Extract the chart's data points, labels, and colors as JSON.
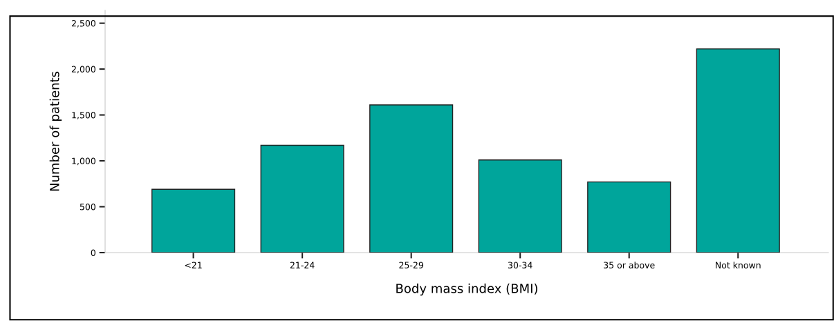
{
  "chart_data": {
    "type": "bar",
    "xlabel": "Body mass index (BMI)",
    "ylabel": "Number of patients",
    "categories": [
      "<21",
      "21-24",
      "25-29",
      "30-34",
      "35 or above",
      "Not known"
    ],
    "values": [
      690,
      1170,
      1610,
      1010,
      770,
      2220
    ],
    "color": "#00a59b",
    "ylim": [
      0,
      2640
    ],
    "yticks": [
      {
        "value": 0,
        "label": "0"
      },
      {
        "value": 500,
        "label": "500"
      },
      {
        "value": 1000,
        "label": "1,000"
      },
      {
        "value": 1500,
        "label": "1,500"
      },
      {
        "value": 2000,
        "label": "2,000"
      },
      {
        "value": 2500,
        "label": "2,500"
      }
    ],
    "grid": false
  }
}
